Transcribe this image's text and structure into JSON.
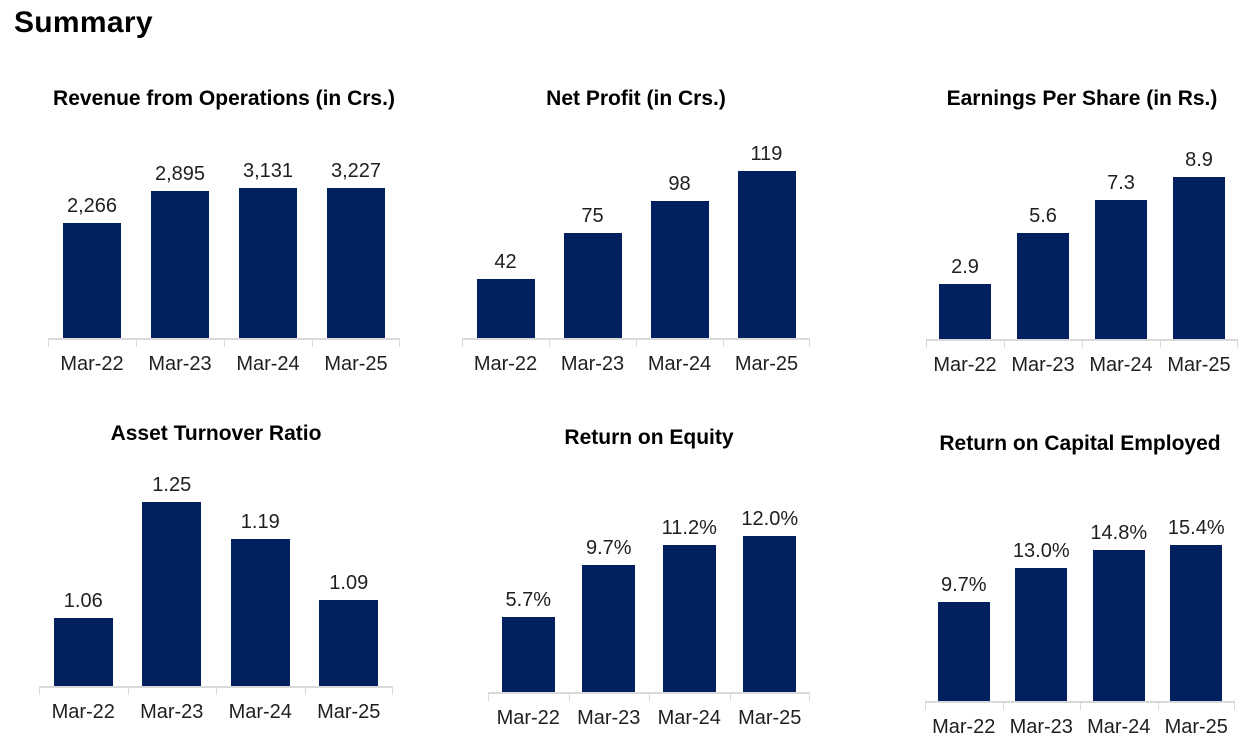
{
  "page": {
    "heading": "Summary"
  },
  "colors": {
    "bar": "#002060",
    "axis": "#D9D9D9",
    "label": "#1F1F1F",
    "title": "#000000"
  },
  "chart_data": [
    {
      "type": "bar",
      "title": "Revenue from Operations (in Crs.)",
      "categories": [
        "Mar-22",
        "Mar-23",
        "Mar-24",
        "Mar-25"
      ],
      "values": [
        2266,
        2895,
        3131,
        3227
      ],
      "labels": [
        "2,266",
        "2,895",
        "3,131",
        "3,227"
      ],
      "xlabel": "",
      "ylabel": "",
      "ylim": [
        0,
        3500
      ],
      "grid": false,
      "legend": "none",
      "data_labels": "outside-end"
    },
    {
      "type": "bar",
      "title": "Net Profit (in Crs.)",
      "categories": [
        "Mar-22",
        "Mar-23",
        "Mar-24",
        "Mar-25"
      ],
      "values": [
        42,
        75,
        98,
        119
      ],
      "labels": [
        "42",
        "75",
        "98",
        "119"
      ],
      "xlabel": "",
      "ylabel": "",
      "ylim": [
        0,
        140
      ],
      "grid": false,
      "legend": "none",
      "data_labels": "outside-end"
    },
    {
      "type": "bar",
      "title": "Earnings Per Share (in Rs.)",
      "categories": [
        "Mar-22",
        "Mar-23",
        "Mar-24",
        "Mar-25"
      ],
      "values": [
        2.9,
        5.6,
        7.3,
        8.9
      ],
      "labels": [
        "2.9",
        "5.6",
        "7.3",
        "8.9"
      ],
      "xlabel": "",
      "ylabel": "",
      "ylim": [
        0,
        10
      ],
      "grid": false,
      "legend": "none",
      "data_labels": "outside-end"
    },
    {
      "type": "bar",
      "title": "Asset Turnover Ratio",
      "categories": [
        "Mar-22",
        "Mar-23",
        "Mar-24",
        "Mar-25"
      ],
      "values": [
        1.06,
        1.25,
        1.19,
        1.09
      ],
      "labels": [
        "1.06",
        "1.25",
        "1.19",
        "1.09"
      ],
      "xlabel": "",
      "ylabel": "",
      "ylim": [
        0.95,
        1.3
      ],
      "grid": false,
      "legend": "none",
      "data_labels": "outside-end"
    },
    {
      "type": "bar",
      "title": "Return on Equity",
      "categories": [
        "Mar-22",
        "Mar-23",
        "Mar-24",
        "Mar-25"
      ],
      "values": [
        5.7,
        9.7,
        11.2,
        12.0
      ],
      "labels": [
        "5.7%",
        "9.7%",
        "11.2%",
        "12.0%"
      ],
      "xlabel": "",
      "ylabel": "",
      "ylim": [
        0,
        14
      ],
      "grid": false,
      "legend": "none",
      "data_labels": "outside-end"
    },
    {
      "type": "bar",
      "title": "Return on Capital Employed",
      "categories": [
        "Mar-22",
        "Mar-23",
        "Mar-24",
        "Mar-25"
      ],
      "values": [
        9.7,
        13.0,
        14.8,
        15.4
      ],
      "labels": [
        "9.7%",
        "13.0%",
        "14.8%",
        "15.4%"
      ],
      "xlabel": "",
      "ylabel": "",
      "ylim": [
        0,
        18
      ],
      "grid": false,
      "legend": "none",
      "data_labels": "outside-end"
    }
  ]
}
